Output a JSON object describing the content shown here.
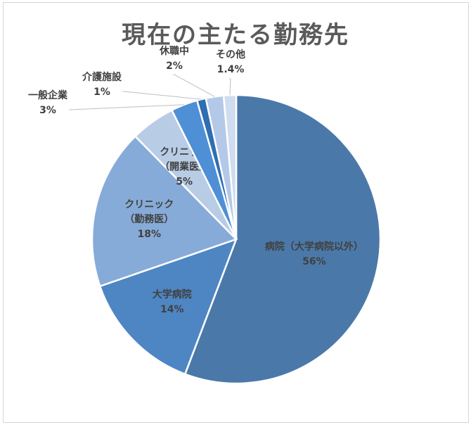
{
  "chart_data": {
    "type": "pie",
    "title": "現在の主たる勤務先",
    "slices": [
      {
        "name": "病院（大学病院以外）",
        "value": 56,
        "value_label": "56%",
        "color": "#4a79a9"
      },
      {
        "name": "大学病院",
        "value": 14,
        "value_label": "14%",
        "color": "#4e86c4"
      },
      {
        "name": "クリニック（勤務医）",
        "name_lines": [
          "クリニック",
          "（勤務医）"
        ],
        "value": 18,
        "value_label": "18%",
        "color": "#87abd8"
      },
      {
        "name": "クリニック（開業医）",
        "name_lines": [
          "クリニック",
          "（開業医）"
        ],
        "value": 5,
        "value_label": "5%",
        "color": "#b9cce6"
      },
      {
        "name": "一般企業",
        "value": 3,
        "value_label": "3%",
        "color": "#4e8fd6"
      },
      {
        "name": "介護施設",
        "value": 1,
        "value_label": "1%",
        "color": "#2f6eb1"
      },
      {
        "name": "休職中",
        "value": 2,
        "value_label": "2%",
        "color": "#b4c9e8"
      },
      {
        "name": "その他",
        "value": 1.4,
        "value_label": "1.4%",
        "color": "#d0dcef"
      }
    ],
    "legend": "none"
  }
}
